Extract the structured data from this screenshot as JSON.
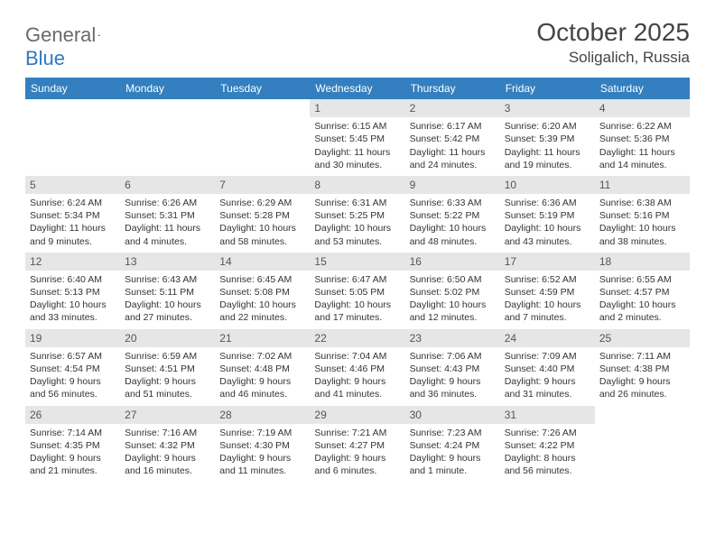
{
  "logo": {
    "text1": "General",
    "text2": "Blue"
  },
  "title": "October 2025",
  "location": "Soligalich, Russia",
  "colors": {
    "header_bg": "#337fbf",
    "header_text": "#ffffff",
    "daynum_bg": "#e6e6e6",
    "logo_gray": "#6a6a6a",
    "logo_blue": "#2f78bf",
    "body_text": "#333333"
  },
  "day_headers": [
    "Sunday",
    "Monday",
    "Tuesday",
    "Wednesday",
    "Thursday",
    "Friday",
    "Saturday"
  ],
  "weeks": [
    [
      {
        "n": "",
        "sr": "",
        "ss": "",
        "d1": "",
        "d2": ""
      },
      {
        "n": "",
        "sr": "",
        "ss": "",
        "d1": "",
        "d2": ""
      },
      {
        "n": "",
        "sr": "",
        "ss": "",
        "d1": "",
        "d2": ""
      },
      {
        "n": "1",
        "sr": "Sunrise: 6:15 AM",
        "ss": "Sunset: 5:45 PM",
        "d1": "Daylight: 11 hours",
        "d2": "and 30 minutes."
      },
      {
        "n": "2",
        "sr": "Sunrise: 6:17 AM",
        "ss": "Sunset: 5:42 PM",
        "d1": "Daylight: 11 hours",
        "d2": "and 24 minutes."
      },
      {
        "n": "3",
        "sr": "Sunrise: 6:20 AM",
        "ss": "Sunset: 5:39 PM",
        "d1": "Daylight: 11 hours",
        "d2": "and 19 minutes."
      },
      {
        "n": "4",
        "sr": "Sunrise: 6:22 AM",
        "ss": "Sunset: 5:36 PM",
        "d1": "Daylight: 11 hours",
        "d2": "and 14 minutes."
      }
    ],
    [
      {
        "n": "5",
        "sr": "Sunrise: 6:24 AM",
        "ss": "Sunset: 5:34 PM",
        "d1": "Daylight: 11 hours",
        "d2": "and 9 minutes."
      },
      {
        "n": "6",
        "sr": "Sunrise: 6:26 AM",
        "ss": "Sunset: 5:31 PM",
        "d1": "Daylight: 11 hours",
        "d2": "and 4 minutes."
      },
      {
        "n": "7",
        "sr": "Sunrise: 6:29 AM",
        "ss": "Sunset: 5:28 PM",
        "d1": "Daylight: 10 hours",
        "d2": "and 58 minutes."
      },
      {
        "n": "8",
        "sr": "Sunrise: 6:31 AM",
        "ss": "Sunset: 5:25 PM",
        "d1": "Daylight: 10 hours",
        "d2": "and 53 minutes."
      },
      {
        "n": "9",
        "sr": "Sunrise: 6:33 AM",
        "ss": "Sunset: 5:22 PM",
        "d1": "Daylight: 10 hours",
        "d2": "and 48 minutes."
      },
      {
        "n": "10",
        "sr": "Sunrise: 6:36 AM",
        "ss": "Sunset: 5:19 PM",
        "d1": "Daylight: 10 hours",
        "d2": "and 43 minutes."
      },
      {
        "n": "11",
        "sr": "Sunrise: 6:38 AM",
        "ss": "Sunset: 5:16 PM",
        "d1": "Daylight: 10 hours",
        "d2": "and 38 minutes."
      }
    ],
    [
      {
        "n": "12",
        "sr": "Sunrise: 6:40 AM",
        "ss": "Sunset: 5:13 PM",
        "d1": "Daylight: 10 hours",
        "d2": "and 33 minutes."
      },
      {
        "n": "13",
        "sr": "Sunrise: 6:43 AM",
        "ss": "Sunset: 5:11 PM",
        "d1": "Daylight: 10 hours",
        "d2": "and 27 minutes."
      },
      {
        "n": "14",
        "sr": "Sunrise: 6:45 AM",
        "ss": "Sunset: 5:08 PM",
        "d1": "Daylight: 10 hours",
        "d2": "and 22 minutes."
      },
      {
        "n": "15",
        "sr": "Sunrise: 6:47 AM",
        "ss": "Sunset: 5:05 PM",
        "d1": "Daylight: 10 hours",
        "d2": "and 17 minutes."
      },
      {
        "n": "16",
        "sr": "Sunrise: 6:50 AM",
        "ss": "Sunset: 5:02 PM",
        "d1": "Daylight: 10 hours",
        "d2": "and 12 minutes."
      },
      {
        "n": "17",
        "sr": "Sunrise: 6:52 AM",
        "ss": "Sunset: 4:59 PM",
        "d1": "Daylight: 10 hours",
        "d2": "and 7 minutes."
      },
      {
        "n": "18",
        "sr": "Sunrise: 6:55 AM",
        "ss": "Sunset: 4:57 PM",
        "d1": "Daylight: 10 hours",
        "d2": "and 2 minutes."
      }
    ],
    [
      {
        "n": "19",
        "sr": "Sunrise: 6:57 AM",
        "ss": "Sunset: 4:54 PM",
        "d1": "Daylight: 9 hours",
        "d2": "and 56 minutes."
      },
      {
        "n": "20",
        "sr": "Sunrise: 6:59 AM",
        "ss": "Sunset: 4:51 PM",
        "d1": "Daylight: 9 hours",
        "d2": "and 51 minutes."
      },
      {
        "n": "21",
        "sr": "Sunrise: 7:02 AM",
        "ss": "Sunset: 4:48 PM",
        "d1": "Daylight: 9 hours",
        "d2": "and 46 minutes."
      },
      {
        "n": "22",
        "sr": "Sunrise: 7:04 AM",
        "ss": "Sunset: 4:46 PM",
        "d1": "Daylight: 9 hours",
        "d2": "and 41 minutes."
      },
      {
        "n": "23",
        "sr": "Sunrise: 7:06 AM",
        "ss": "Sunset: 4:43 PM",
        "d1": "Daylight: 9 hours",
        "d2": "and 36 minutes."
      },
      {
        "n": "24",
        "sr": "Sunrise: 7:09 AM",
        "ss": "Sunset: 4:40 PM",
        "d1": "Daylight: 9 hours",
        "d2": "and 31 minutes."
      },
      {
        "n": "25",
        "sr": "Sunrise: 7:11 AM",
        "ss": "Sunset: 4:38 PM",
        "d1": "Daylight: 9 hours",
        "d2": "and 26 minutes."
      }
    ],
    [
      {
        "n": "26",
        "sr": "Sunrise: 7:14 AM",
        "ss": "Sunset: 4:35 PM",
        "d1": "Daylight: 9 hours",
        "d2": "and 21 minutes."
      },
      {
        "n": "27",
        "sr": "Sunrise: 7:16 AM",
        "ss": "Sunset: 4:32 PM",
        "d1": "Daylight: 9 hours",
        "d2": "and 16 minutes."
      },
      {
        "n": "28",
        "sr": "Sunrise: 7:19 AM",
        "ss": "Sunset: 4:30 PM",
        "d1": "Daylight: 9 hours",
        "d2": "and 11 minutes."
      },
      {
        "n": "29",
        "sr": "Sunrise: 7:21 AM",
        "ss": "Sunset: 4:27 PM",
        "d1": "Daylight: 9 hours",
        "d2": "and 6 minutes."
      },
      {
        "n": "30",
        "sr": "Sunrise: 7:23 AM",
        "ss": "Sunset: 4:24 PM",
        "d1": "Daylight: 9 hours",
        "d2": "and 1 minute."
      },
      {
        "n": "31",
        "sr": "Sunrise: 7:26 AM",
        "ss": "Sunset: 4:22 PM",
        "d1": "Daylight: 8 hours",
        "d2": "and 56 minutes."
      },
      {
        "n": "",
        "sr": "",
        "ss": "",
        "d1": "",
        "d2": ""
      }
    ]
  ]
}
